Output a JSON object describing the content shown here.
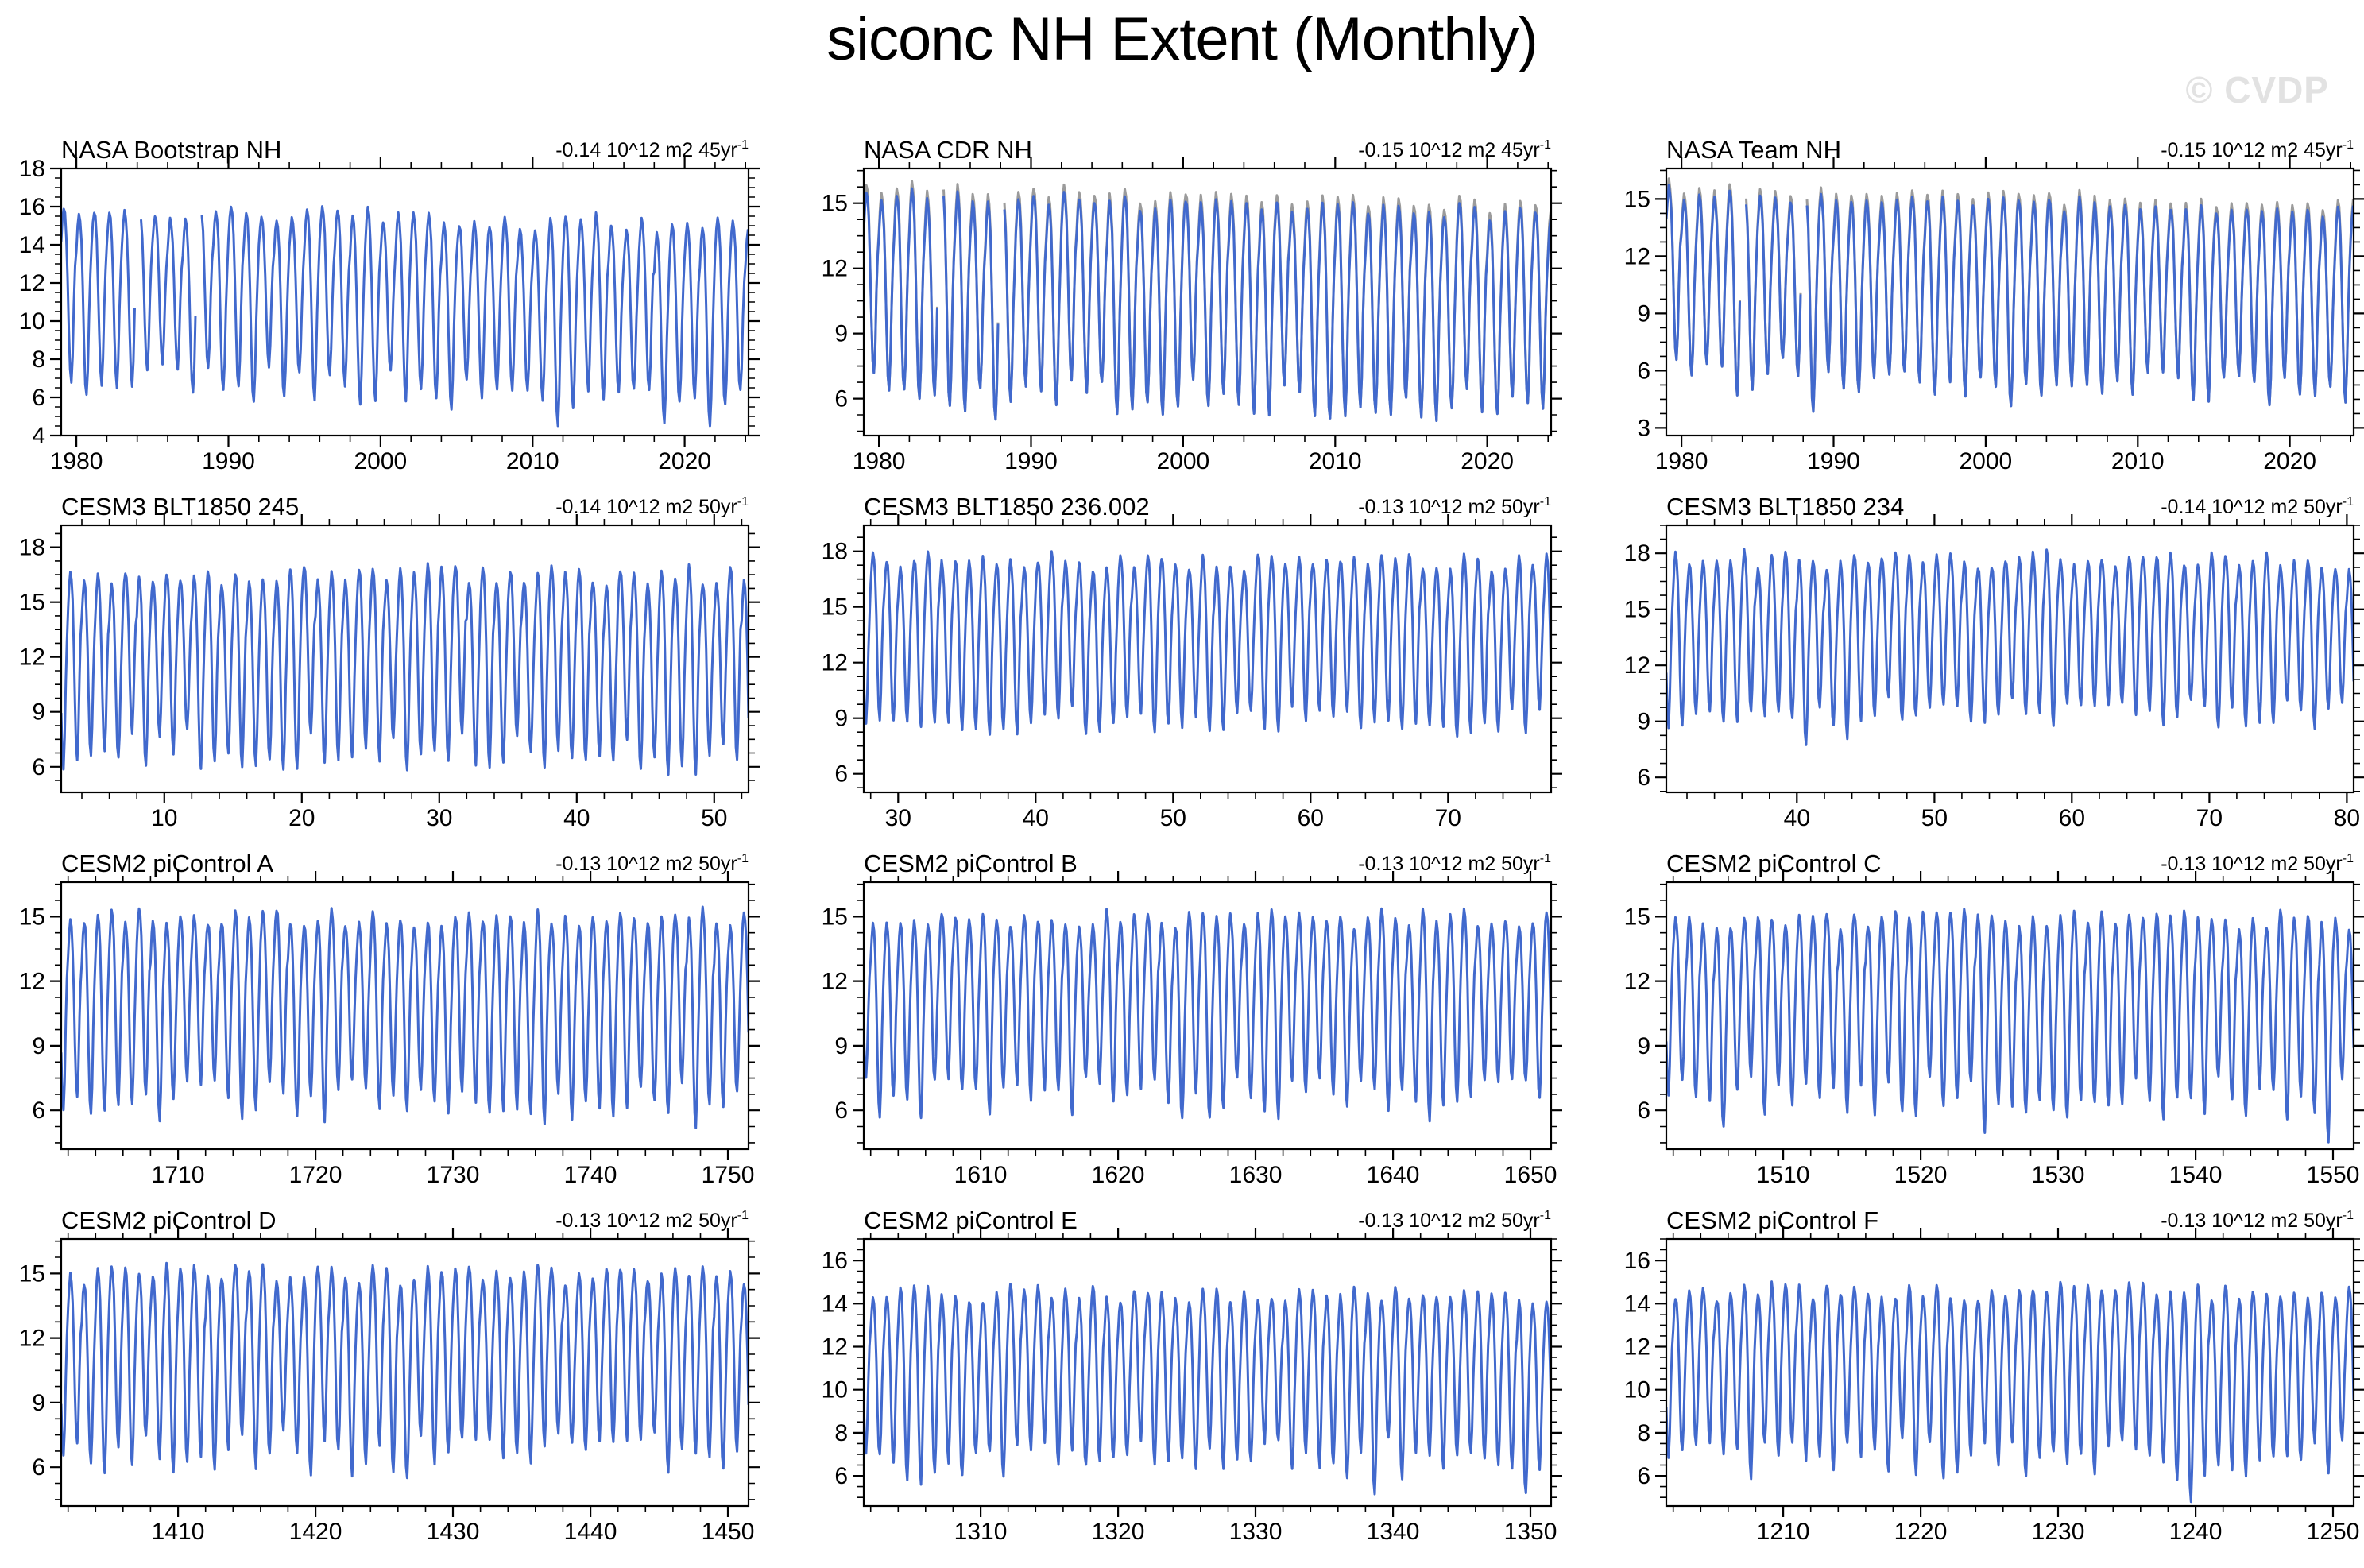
{
  "page": {
    "title": "siconc NH Extent (Monthly)",
    "watermark": "© CVDP"
  },
  "colors": {
    "series_primary": "#4169cd",
    "series_secondary": "#9b9b9b",
    "frame": "#000000",
    "watermark": "#e2e2e2"
  },
  "chart_data": {
    "type": "line",
    "title": "siconc NH Extent (Monthly)",
    "y_units": "10^12 m2",
    "grid": {
      "rows": 4,
      "cols": 3
    },
    "panels": [
      {
        "title": "NASA Bootstrap NH",
        "trend_text": "-0.14 10^12 m2 45yr",
        "trend_sup": "-1",
        "x_min": 1979.0,
        "x_max": 2024.2,
        "x_ticks": [
          1980,
          1990,
          2000,
          2010,
          2020
        ],
        "x_minor": 2,
        "y_min": 4.0,
        "y_max": 18.0,
        "y_ticks": [
          4,
          6,
          8,
          10,
          12,
          14,
          16,
          18
        ],
        "y_minor": 0.5,
        "seasonal_max": 15.9,
        "seasonal_min": 7.0,
        "peak_var": 0.5,
        "trough_var": 1.0,
        "deep_prob": 0.12,
        "trend_visual": -1.0,
        "has_secondary": false,
        "gaps": [
          [
            1983.9,
            1984.2
          ],
          [
            1987.9,
            1988.2
          ]
        ],
        "seed": 101
      },
      {
        "title": "NASA CDR NH",
        "trend_text": "-0.15 10^12 m2 45yr",
        "trend_sup": "-1",
        "x_min": 1979.0,
        "x_max": 2024.2,
        "x_ticks": [
          1980,
          1990,
          2000,
          2010,
          2020
        ],
        "x_minor": 2,
        "y_min": 4.3,
        "y_max": 16.6,
        "y_ticks": [
          6,
          9,
          12,
          15
        ],
        "y_minor": 0.75,
        "seasonal_max": 15.5,
        "seasonal_min": 6.5,
        "peak_var": 0.4,
        "trough_var": 0.9,
        "deep_prob": 0.12,
        "trend_visual": -1.0,
        "has_secondary": true,
        "gaps": [
          [
            1983.9,
            1984.2
          ],
          [
            1987.9,
            1988.2
          ]
        ],
        "seed": 102
      },
      {
        "title": "NASA Team NH",
        "trend_text": "-0.15 10^12 m2 45yr",
        "trend_sup": "-1",
        "x_min": 1979.0,
        "x_max": 2024.2,
        "x_ticks": [
          1980,
          1990,
          2000,
          2010,
          2020
        ],
        "x_minor": 2,
        "y_min": 2.6,
        "y_max": 16.6,
        "y_ticks": [
          3,
          6,
          9,
          12,
          15
        ],
        "y_minor": 0.75,
        "seasonal_max": 15.4,
        "seasonal_min": 5.9,
        "peak_var": 0.4,
        "trough_var": 0.9,
        "deep_prob": 0.12,
        "trend_visual": -1.1,
        "has_secondary": true,
        "gaps": [
          [
            1983.9,
            1984.2
          ],
          [
            1987.9,
            1988.2
          ]
        ],
        "seed": 103
      },
      {
        "title": "CESM3 BLT1850 245",
        "trend_text": "-0.14 10^12 m2 50yr",
        "trend_sup": "-1",
        "x_min": 2.5,
        "x_max": 52.5,
        "x_ticks": [
          10,
          20,
          30,
          40,
          50
        ],
        "x_minor": 2,
        "y_min": 4.6,
        "y_max": 19.2,
        "y_ticks": [
          6,
          9,
          12,
          15,
          18
        ],
        "y_minor": 0.75,
        "seasonal_max": 16.6,
        "seasonal_min": 6.9,
        "peak_var": 0.7,
        "trough_var": 1.2,
        "deep_prob": 0.06,
        "trend_visual": -0.2,
        "has_secondary": false,
        "gaps": [],
        "seed": 104
      },
      {
        "title": "CESM3 BLT1850 236.002",
        "trend_text": "-0.13 10^12 m2 50yr",
        "trend_sup": "-1",
        "x_min": 27.5,
        "x_max": 77.5,
        "x_ticks": [
          30,
          40,
          50,
          60,
          70
        ],
        "x_minor": 2,
        "y_min": 5.0,
        "y_max": 19.4,
        "y_ticks": [
          6,
          9,
          12,
          15,
          18
        ],
        "y_minor": 0.75,
        "seasonal_max": 17.5,
        "seasonal_min": 8.9,
        "peak_var": 0.5,
        "trough_var": 0.8,
        "deep_prob": 0.04,
        "trend_visual": -0.1,
        "has_secondary": false,
        "gaps": [],
        "seed": 105
      },
      {
        "title": "CESM3 BLT1850 234",
        "trend_text": "-0.14 10^12 m2 50yr",
        "trend_sup": "-1",
        "x_min": 30.5,
        "x_max": 80.5,
        "x_ticks": [
          40,
          50,
          60,
          70,
          80
        ],
        "x_minor": 2,
        "y_min": 5.2,
        "y_max": 19.5,
        "y_ticks": [
          6,
          9,
          12,
          15,
          18
        ],
        "y_minor": 0.75,
        "seasonal_max": 17.7,
        "seasonal_min": 9.5,
        "peak_var": 0.5,
        "trough_var": 0.8,
        "deep_prob": 0.04,
        "trend_visual": -0.15,
        "has_secondary": false,
        "gaps": [],
        "seed": 106
      },
      {
        "title": "CESM2 piControl A",
        "trend_text": "-0.13 10^12 m2 50yr",
        "trend_sup": "-1",
        "x_min": 1701.5,
        "x_max": 1751.5,
        "x_ticks": [
          1710,
          1720,
          1730,
          1740,
          1750
        ],
        "x_minor": 2,
        "y_min": 4.2,
        "y_max": 16.6,
        "y_ticks": [
          6,
          9,
          12,
          15
        ],
        "y_minor": 0.75,
        "seasonal_max": 15.0,
        "seasonal_min": 6.5,
        "peak_var": 0.45,
        "trough_var": 1.0,
        "deep_prob": 0.06,
        "trend_visual": -0.1,
        "has_secondary": false,
        "gaps": [],
        "seed": 107
      },
      {
        "title": "CESM2 piControl B",
        "trend_text": "-0.13 10^12 m2 50yr",
        "trend_sup": "-1",
        "x_min": 1601.5,
        "x_max": 1651.5,
        "x_ticks": [
          1610,
          1620,
          1630,
          1640,
          1650
        ],
        "x_minor": 2,
        "y_min": 4.2,
        "y_max": 16.6,
        "y_ticks": [
          6,
          9,
          12,
          15
        ],
        "y_minor": 0.75,
        "seasonal_max": 15.0,
        "seasonal_min": 6.6,
        "peak_var": 0.45,
        "trough_var": 1.0,
        "deep_prob": 0.06,
        "trend_visual": -0.1,
        "has_secondary": false,
        "gaps": [],
        "seed": 108
      },
      {
        "title": "CESM2 piControl C",
        "trend_text": "-0.13 10^12 m2 50yr",
        "trend_sup": "-1",
        "x_min": 1501.5,
        "x_max": 1551.5,
        "x_ticks": [
          1510,
          1520,
          1530,
          1540,
          1550
        ],
        "x_minor": 2,
        "y_min": 4.2,
        "y_max": 16.6,
        "y_ticks": [
          6,
          9,
          12,
          15
        ],
        "y_minor": 0.75,
        "seasonal_max": 14.9,
        "seasonal_min": 6.6,
        "peak_var": 0.45,
        "trough_var": 1.0,
        "deep_prob": 0.06,
        "trend_visual": -0.1,
        "has_secondary": false,
        "gaps": [],
        "seed": 109
      },
      {
        "title": "CESM2 piControl D",
        "trend_text": "-0.13 10^12 m2 50yr",
        "trend_sup": "-1",
        "x_min": 1401.5,
        "x_max": 1451.5,
        "x_ticks": [
          1410,
          1420,
          1430,
          1440,
          1450
        ],
        "x_minor": 2,
        "y_min": 4.2,
        "y_max": 16.6,
        "y_ticks": [
          6,
          9,
          12,
          15
        ],
        "y_minor": 0.75,
        "seasonal_max": 15.0,
        "seasonal_min": 6.7,
        "peak_var": 0.45,
        "trough_var": 1.0,
        "deep_prob": 0.06,
        "trend_visual": -0.1,
        "has_secondary": false,
        "gaps": [],
        "seed": 110
      },
      {
        "title": "CESM2 piControl E",
        "trend_text": "-0.13 10^12 m2 50yr",
        "trend_sup": "-1",
        "x_min": 1301.5,
        "x_max": 1351.5,
        "x_ticks": [
          1310,
          1320,
          1330,
          1340,
          1350
        ],
        "x_minor": 2,
        "y_min": 4.6,
        "y_max": 17.0,
        "y_ticks": [
          6,
          8,
          10,
          12,
          14,
          16
        ],
        "y_minor": 0.5,
        "seasonal_max": 14.5,
        "seasonal_min": 6.8,
        "peak_var": 0.45,
        "trough_var": 1.0,
        "deep_prob": 0.06,
        "trend_visual": -0.1,
        "has_secondary": false,
        "gaps": [],
        "seed": 111
      },
      {
        "title": "CESM2 piControl F",
        "trend_text": "-0.13 10^12 m2 50yr",
        "trend_sup": "-1",
        "x_min": 1201.5,
        "x_max": 1251.5,
        "x_ticks": [
          1210,
          1220,
          1230,
          1240,
          1250
        ],
        "x_minor": 2,
        "y_min": 4.6,
        "y_max": 17.0,
        "y_ticks": [
          6,
          8,
          10,
          12,
          14,
          16
        ],
        "y_minor": 0.5,
        "seasonal_max": 14.6,
        "seasonal_min": 6.9,
        "peak_var": 0.45,
        "trough_var": 1.0,
        "deep_prob": 0.06,
        "trend_visual": -0.1,
        "has_secondary": false,
        "gaps": [],
        "seed": 112
      }
    ]
  }
}
